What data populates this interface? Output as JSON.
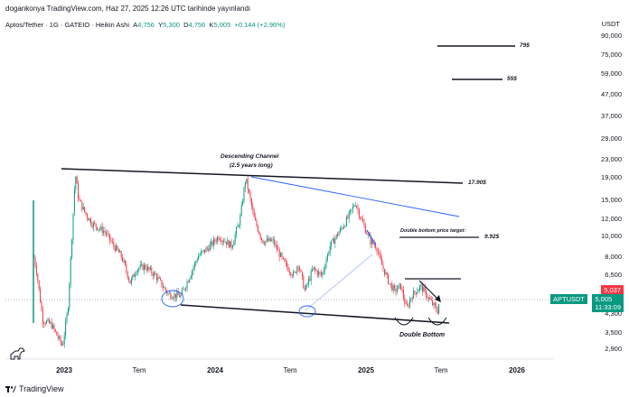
{
  "publisher_note": "dogankonya TradingView.com, Haz 27, 2025 12:26 UTC tarihinde yayınlandı",
  "legend": {
    "symbol": "Aptos/Tether · 1G · GATEIO · Heikin Ashi",
    "o_key": "A",
    "o_val": "4,756",
    "h_key": "Y",
    "h_val": "5,300",
    "l_key": "D",
    "l_val": "4,756",
    "c_key": "K",
    "c_val": "5,005",
    "change": "+0,144 (+2,96%)"
  },
  "currency": "USDT",
  "price_axis": [
    "90,000",
    "75,000",
    "59,000",
    "47,000",
    "37,000",
    "29,000",
    "23,000",
    "19,000",
    "15,000",
    "12,000",
    "10,000",
    "8,000",
    "6,500",
    "5,037",
    "4,300",
    "3,500",
    "2,900"
  ],
  "time_axis": [
    "2023",
    "Tem",
    "2024",
    "Tem",
    "2025",
    "Tem",
    "2026"
  ],
  "tags": {
    "symbol": "APTUSDT",
    "last_price": "5,005",
    "countdown": "11:33:09",
    "red_price": "5,037"
  },
  "annotations": {
    "target_79": "79$",
    "target_55": "55$",
    "target_1790": "17.90$",
    "target_992": "9.92$",
    "channel_title": "Descending Channel",
    "channel_sub": "(2.5 years long)",
    "db_target": "Double bottom price target:",
    "double_bottom": "Double Bottom"
  },
  "footer": "TradingView",
  "colors": {
    "up": "#089981",
    "down": "#f23645",
    "trend": "#131722",
    "blue_line": "#2962ff",
    "tag_green": "#089981",
    "tag_red": "#f23645"
  },
  "chart_data": {
    "type": "candlestick",
    "title": "Aptos/Tether · 1G · GATEIO · Heikin Ashi",
    "ylabel": "USDT",
    "yscale": "log",
    "ylim": [
      2.6,
      100
    ],
    "x_ticks": [
      "2023",
      "Tem",
      "2024",
      "Tem",
      "2025",
      "Tem",
      "2026"
    ],
    "path": [
      [
        "2022-10-20",
        8.0
      ],
      [
        "2022-10-28",
        6.5
      ],
      [
        "2022-11-10",
        4.0
      ],
      [
        "2022-12-01",
        3.8
      ],
      [
        "2022-12-28",
        3.0
      ],
      [
        "2023-01-10",
        4.5
      ],
      [
        "2023-01-22",
        12.0
      ],
      [
        "2023-01-28",
        20.0
      ],
      [
        "2023-02-05",
        15.0
      ],
      [
        "2023-02-20",
        13.0
      ],
      [
        "2023-03-10",
        11.5
      ],
      [
        "2023-03-25",
        11.0
      ],
      [
        "2023-04-10",
        10.5
      ],
      [
        "2023-05-01",
        9.0
      ],
      [
        "2023-05-20",
        8.0
      ],
      [
        "2023-06-10",
        6.0
      ],
      [
        "2023-06-25",
        7.0
      ],
      [
        "2023-07-15",
        7.2
      ],
      [
        "2023-08-10",
        6.5
      ],
      [
        "2023-09-10",
        5.3
      ],
      [
        "2023-10-10",
        5.2
      ],
      [
        "2023-11-01",
        6.5
      ],
      [
        "2023-11-20",
        8.0
      ],
      [
        "2023-12-20",
        9.0
      ],
      [
        "2024-01-10",
        10.0
      ],
      [
        "2024-02-10",
        9.0
      ],
      [
        "2024-03-01",
        12.0
      ],
      [
        "2024-03-15",
        19.0
      ],
      [
        "2024-04-05",
        12.0
      ],
      [
        "2024-04-25",
        9.5
      ],
      [
        "2024-05-20",
        9.5
      ],
      [
        "2024-06-15",
        7.5
      ],
      [
        "2024-07-10",
        6.5
      ],
      [
        "2024-07-20",
        7.5
      ],
      [
        "2024-08-05",
        5.5
      ],
      [
        "2024-08-25",
        7.0
      ],
      [
        "2024-09-15",
        6.5
      ],
      [
        "2024-10-05",
        9.0
      ],
      [
        "2024-10-20",
        10.0
      ],
      [
        "2024-11-15",
        12.0
      ],
      [
        "2024-12-05",
        14.5
      ],
      [
        "2024-12-20",
        12.0
      ],
      [
        "2025-01-10",
        9.5
      ],
      [
        "2025-01-25",
        9.0
      ],
      [
        "2025-02-05",
        7.5
      ],
      [
        "2025-02-25",
        6.0
      ],
      [
        "2025-03-10",
        5.5
      ],
      [
        "2025-03-25",
        5.8
      ],
      [
        "2025-04-08",
        4.5
      ],
      [
        "2025-04-20",
        5.2
      ],
      [
        "2025-05-12",
        5.8
      ],
      [
        "2025-05-25",
        5.3
      ],
      [
        "2025-06-05",
        4.9
      ],
      [
        "2025-06-15",
        4.6
      ],
      [
        "2025-06-22",
        4.4
      ],
      [
        "2025-06-27",
        5.0
      ]
    ]
  }
}
